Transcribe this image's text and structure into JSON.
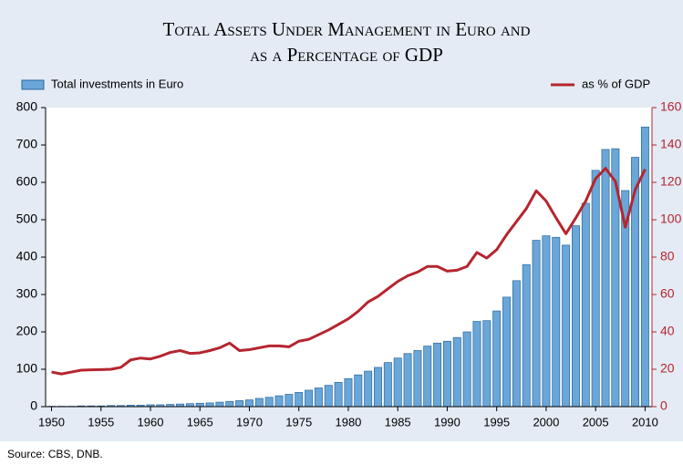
{
  "chart_data": {
    "type": "bar_line",
    "title": [
      "Total Assets Under Management in Euro and",
      "as a Percentage of GDP"
    ],
    "source": "Source: CBS, DNB.",
    "x": [
      1950,
      1951,
      1952,
      1953,
      1954,
      1955,
      1956,
      1957,
      1958,
      1959,
      1960,
      1961,
      1962,
      1963,
      1964,
      1965,
      1966,
      1967,
      1968,
      1969,
      1970,
      1971,
      1972,
      1973,
      1974,
      1975,
      1976,
      1977,
      1978,
      1979,
      1980,
      1981,
      1982,
      1983,
      1984,
      1985,
      1986,
      1987,
      1988,
      1989,
      1990,
      1991,
      1992,
      1993,
      1994,
      1995,
      1996,
      1997,
      1998,
      1999,
      2000,
      2001,
      2002,
      2003,
      2004,
      2005,
      2006,
      2007,
      2008,
      2009,
      2010
    ],
    "series": [
      {
        "name": "Total investments in Euro",
        "type": "bar",
        "color": "#6aa6d8",
        "edge": "#2a679e",
        "values": [
          1,
          1,
          1,
          2,
          2,
          2,
          3,
          3,
          4,
          4,
          5,
          5,
          6,
          7,
          8,
          9,
          10,
          12,
          14,
          16,
          18,
          22,
          25,
          29,
          33,
          38,
          44,
          50,
          57,
          65,
          75,
          85,
          95,
          105,
          118,
          130,
          142,
          150,
          162,
          170,
          175,
          185,
          200,
          228,
          230,
          256,
          293,
          337,
          380,
          445,
          457,
          453,
          432,
          484,
          544,
          632,
          688,
          690,
          578,
          667,
          748
        ]
      },
      {
        "name": "as % of GDP",
        "type": "line",
        "axis": "y2",
        "color": "#b5252f",
        "values": [
          18.5,
          17.5,
          18.5,
          19.5,
          19.7,
          19.8,
          20,
          21,
          25,
          26,
          25.5,
          27,
          29,
          30,
          28.5,
          28.8,
          30,
          31.5,
          34,
          30,
          30.5,
          31.5,
          32.5,
          32.5,
          32,
          35,
          36,
          38.5,
          41,
          44,
          47,
          51,
          56,
          59,
          63,
          67,
          70,
          72,
          75,
          75,
          72.5,
          73,
          75,
          82.5,
          79.5,
          84,
          92,
          99,
          106,
          115.5,
          110,
          101,
          92.5,
          101,
          110,
          122,
          127.5,
          120.5,
          96,
          116,
          127
        ]
      }
    ],
    "xlim": [
      1949.4,
      2010.7
    ],
    "xticks": [
      1950,
      1955,
      1960,
      1965,
      1970,
      1975,
      1980,
      1985,
      1990,
      1995,
      2000,
      2005,
      2010
    ],
    "ylim": [
      0,
      800
    ],
    "yticks": [
      0,
      100,
      200,
      300,
      400,
      500,
      600,
      700,
      800
    ],
    "y2lim": [
      0,
      160
    ],
    "y2ticks": [
      0,
      20,
      40,
      60,
      80,
      100,
      120,
      140,
      160
    ],
    "y2color": "#b5252f",
    "grid": false
  }
}
